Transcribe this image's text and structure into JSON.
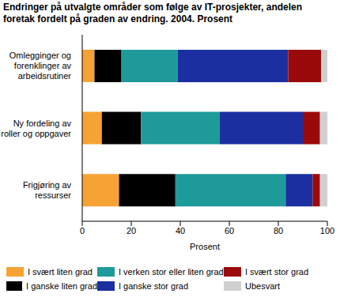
{
  "chart_data": {
    "type": "bar",
    "title": "Endringer på utvalgte områder som følge av IT-prosjekter, andelen foretak fordelt på graden av endring. 2004. Prosent",
    "orientation": "horizontal",
    "stacked": true,
    "grid": false,
    "categories": [
      "Omlegginger og forenklinger av arbeidsrutiner",
      "Ny fordeling av roller og oppgaver",
      "Frigjøring av ressurser"
    ],
    "x_label": "Prosent",
    "xlim": [
      0,
      100
    ],
    "xticks": [
      0,
      20,
      40,
      60,
      80,
      100
    ],
    "series": [
      {
        "name": "I svært liten grad",
        "color": "#f7a234",
        "values": [
          5,
          8,
          15
        ]
      },
      {
        "name": "I ganske liten grad",
        "color": "#000000",
        "values": [
          11,
          16,
          23
        ]
      },
      {
        "name": "I verken stor eller liten grad",
        "color": "#1e9a9a",
        "values": [
          23,
          32,
          45
        ]
      },
      {
        "name": "I ganske stor grad",
        "color": "#1c2fa0",
        "values": [
          45,
          34,
          11
        ]
      },
      {
        "name": "I svært stor grad",
        "color": "#9b0a0a",
        "values": [
          13.5,
          7,
          3
        ]
      },
      {
        "name": "Ubesvart",
        "color": "#d0d0d0",
        "values": [
          2.5,
          3,
          3
        ]
      }
    ]
  }
}
